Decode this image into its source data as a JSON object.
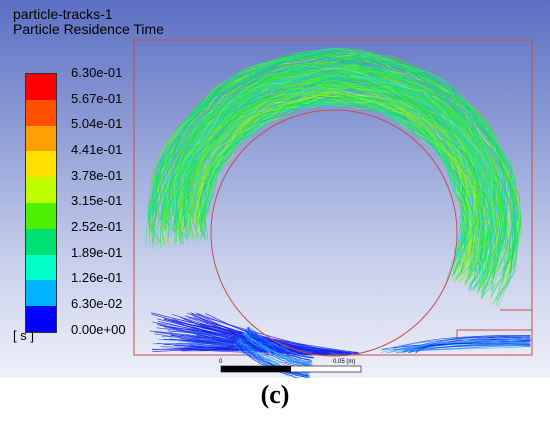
{
  "title_line1": "particle-tracks-1",
  "title_line2": "Particle Residence Time",
  "legend": {
    "unit": "[ s ]",
    "ticks": [
      "6.30e-01",
      "5.67e-01",
      "5.04e-01",
      "4.41e-01",
      "3.78e-01",
      "3.15e-01",
      "2.52e-01",
      "1.89e-01",
      "1.26e-01",
      "6.30e-02",
      "0.00e+00"
    ],
    "colors": [
      "#ff0000",
      "#ff5a00",
      "#ffaa00",
      "#ffe000",
      "#c8ff00",
      "#6cff00",
      "#00e35a",
      "#00ffb0",
      "#00e6ff",
      "#0078ff",
      "#0000ff"
    ]
  },
  "scale_bar": {
    "label_start": "0",
    "label_mid": "0.05 (m)"
  },
  "caption": "(c)"
}
